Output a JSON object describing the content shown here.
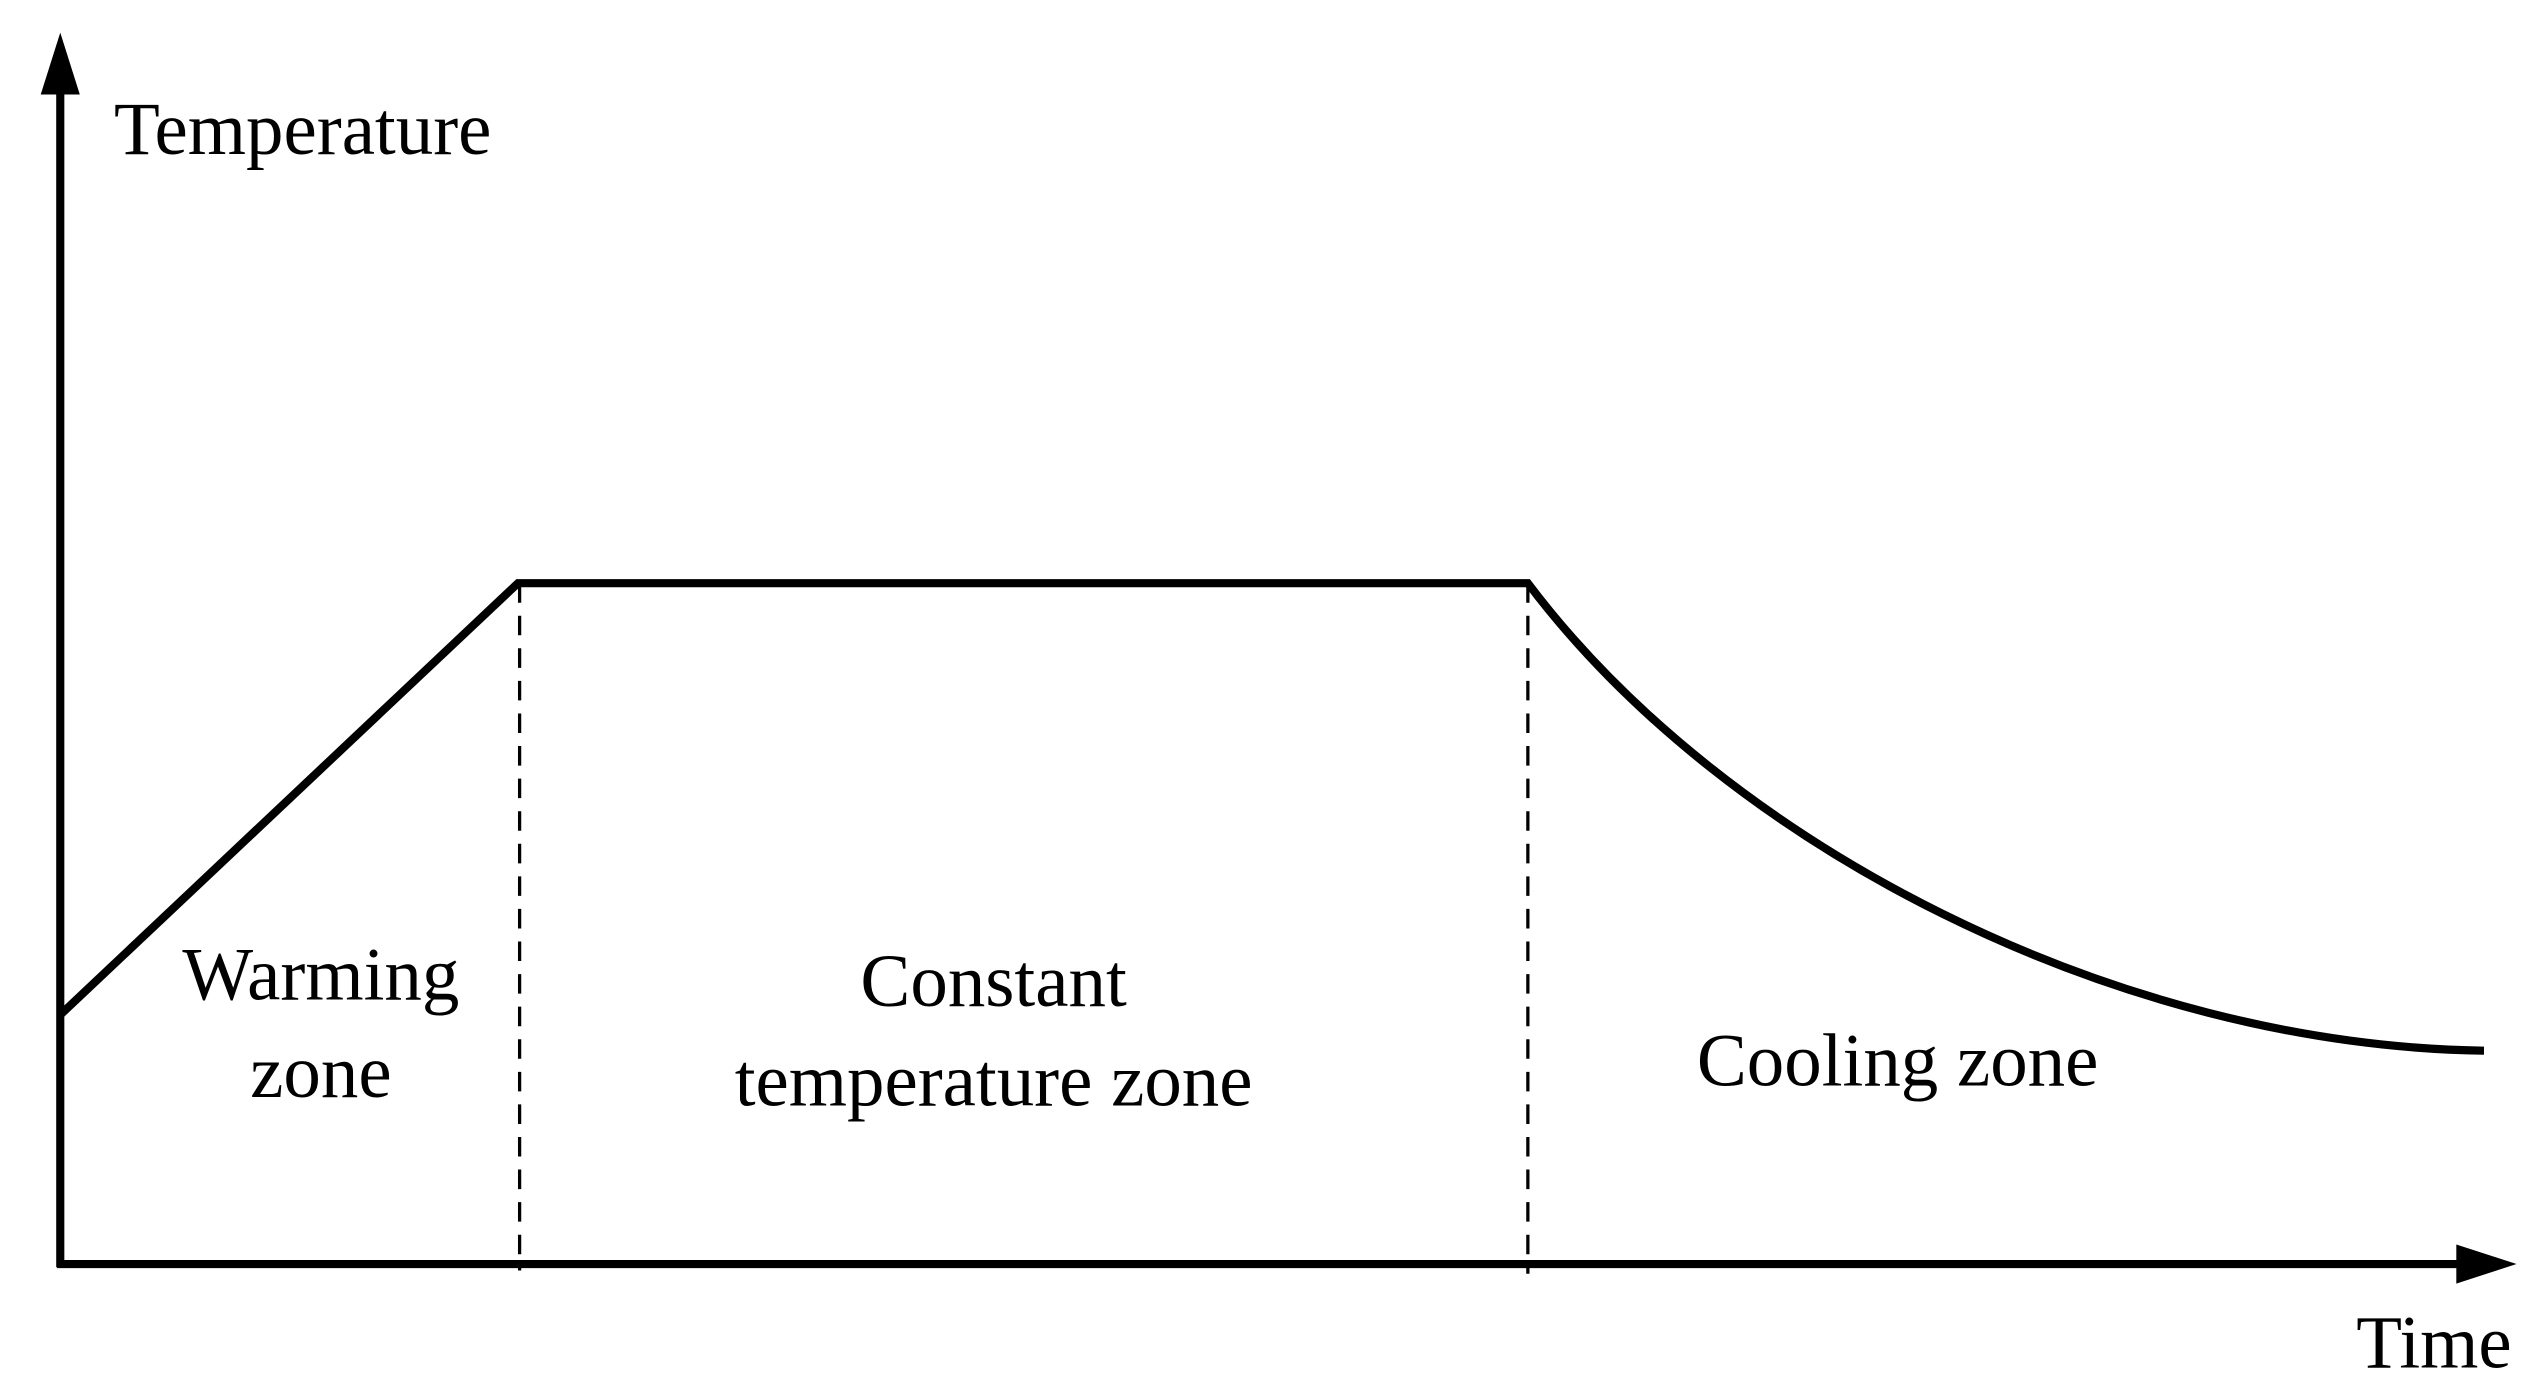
{
  "axes": {
    "y_label": "Temperature",
    "x_label": "Time"
  },
  "zones": [
    {
      "label_lines": [
        "Warming",
        "zone"
      ]
    },
    {
      "label_lines": [
        "Constant",
        "temperature zone"
      ]
    },
    {
      "label_lines": [
        "Cooling zone"
      ]
    }
  ]
}
